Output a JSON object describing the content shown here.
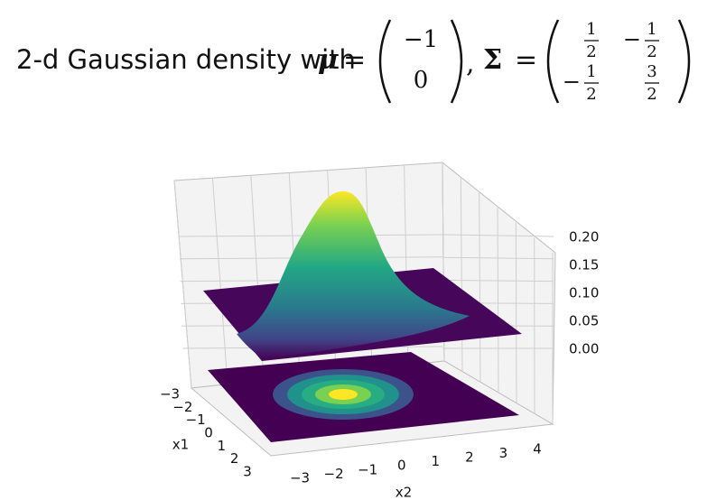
{
  "title": {
    "prefix": "2-d Gaussian density with",
    "mu_symbol": "μ",
    "equals": "=",
    "mu_entries": [
      "−1",
      "0"
    ],
    "separator": ",",
    "sigma_symbol": "Σ",
    "sigma_entries": [
      [
        {
          "sign": "",
          "num": "1",
          "den": "2"
        },
        {
          "sign": "−",
          "num": "1",
          "den": "2"
        }
      ],
      [
        {
          "sign": "−",
          "num": "1",
          "den": "2"
        },
        {
          "sign": "",
          "num": "3",
          "den": "2"
        }
      ]
    ]
  },
  "plot": {
    "z_ticks": [
      "0.20",
      "0.15",
      "0.10",
      "0.05",
      "0.00"
    ],
    "x1_ticks": [
      "−3",
      "−2",
      "−1",
      "0",
      "1",
      "2",
      "3"
    ],
    "x1_label": "x1",
    "x2_ticks": [
      "−3",
      "−2",
      "−1",
      "0",
      "1",
      "2",
      "3",
      "4"
    ],
    "x2_label": "x2"
  }
}
